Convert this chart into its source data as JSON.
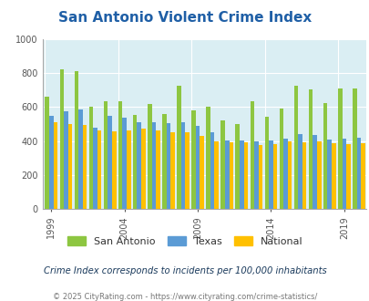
{
  "title": "San Antonio Violent Crime Index",
  "years": [
    1999,
    2000,
    2001,
    2002,
    2003,
    2004,
    2005,
    2006,
    2007,
    2008,
    2009,
    2010,
    2011,
    2012,
    2013,
    2014,
    2015,
    2016,
    2017,
    2018,
    2019,
    2020
  ],
  "san_antonio": [
    660,
    820,
    810,
    600,
    635,
    635,
    555,
    620,
    560,
    725,
    580,
    605,
    520,
    500,
    635,
    545,
    590,
    725,
    705,
    625,
    710,
    710
  ],
  "texas": [
    550,
    575,
    585,
    480,
    550,
    540,
    510,
    510,
    505,
    510,
    490,
    450,
    405,
    405,
    400,
    405,
    415,
    440,
    435,
    410,
    415,
    420
  ],
  "national": [
    510,
    500,
    495,
    465,
    460,
    465,
    475,
    465,
    455,
    455,
    430,
    400,
    395,
    395,
    375,
    380,
    400,
    395,
    400,
    390,
    385,
    390
  ],
  "ylim": [
    0,
    1000
  ],
  "yticks": [
    0,
    200,
    400,
    600,
    800,
    1000
  ],
  "xlabel_ticks": [
    1999,
    2004,
    2009,
    2014,
    2019
  ],
  "color_sa": "#8dc641",
  "color_tx": "#5b9bd5",
  "color_nat": "#ffc000",
  "bg_color": "#daeef3",
  "title_color": "#1f5fa6",
  "subtitle": "Crime Index corresponds to incidents per 100,000 inhabitants",
  "footer": "© 2025 CityRating.com - https://www.cityrating.com/crime-statistics/",
  "legend_labels": [
    "San Antonio",
    "Texas",
    "National"
  ]
}
